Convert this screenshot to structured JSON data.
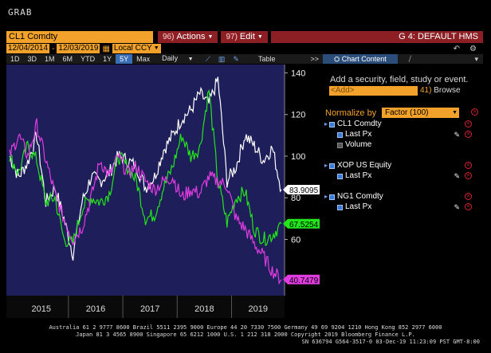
{
  "window": {
    "title": "GRAB"
  },
  "toolbar": {
    "ticker": "CL1 Comdty",
    "actions_num": "96)",
    "actions_label": "Actions",
    "edit_num": "97)",
    "edit_label": "Edit",
    "chart_title": "G 4: DEFAULT HMS"
  },
  "datebar": {
    "start_date": "12/04/2014",
    "end_date": "12/03/2019",
    "currency": "Local CCY"
  },
  "rangebar": {
    "items": [
      "1D",
      "3D",
      "1M",
      "6M",
      "YTD",
      "1Y",
      "5Y",
      "Max"
    ],
    "selected": "5Y",
    "frequency": "Daily",
    "table_label": "Table"
  },
  "sidetabs": {
    "chart_content": "Chart Content",
    "expand_glyph": ">>"
  },
  "panel": {
    "add_prompt": "Add a security, field, study or event.",
    "add_placeholder": "<Add>",
    "browse_num": "41)",
    "browse_label": "Browse",
    "normalize_label": "Normalize by",
    "normalize_value": "Factor (100)",
    "securities": [
      {
        "name": "CL1 Comdty",
        "fields": [
          {
            "label": "Last Px",
            "checked": true
          },
          {
            "label": "Volume",
            "checked": false
          }
        ]
      },
      {
        "name": "XOP US Equity",
        "fields": [
          {
            "label": "Last Px",
            "checked": true
          }
        ]
      },
      {
        "name": "NG1 Comdty",
        "fields": [
          {
            "label": "Last Px",
            "checked": true
          }
        ]
      }
    ]
  },
  "colors": {
    "accent": "#f2a22a",
    "menu_bg": "#8b1f24",
    "plot_bg": "#1e1e5a",
    "cl1": "#ffffff",
    "xop": "#22e51a",
    "ng1": "#e03ce0"
  },
  "chart_data": {
    "type": "line",
    "x": [
      "2014-12",
      "2015-02",
      "2015-04",
      "2015-06",
      "2015-08",
      "2015-10",
      "2015-12",
      "2016-02",
      "2016-04",
      "2016-06",
      "2016-08",
      "2016-10",
      "2016-12",
      "2017-02",
      "2017-04",
      "2017-06",
      "2017-08",
      "2017-10",
      "2017-12",
      "2018-02",
      "2018-04",
      "2018-06",
      "2018-08",
      "2018-10",
      "2018-12",
      "2019-02",
      "2019-04",
      "2019-06",
      "2019-08",
      "2019-10",
      "2019-12"
    ],
    "series": [
      {
        "name": "CL1 Comdty",
        "color": "#ffffff",
        "values": [
          100,
          90,
          97,
          110,
          78,
          85,
          70,
          53,
          78,
          90,
          88,
          92,
          100,
          98,
          95,
          85,
          90,
          103,
          110,
          118,
          122,
          130,
          125,
          137,
          88,
          95,
          110,
          105,
          98,
          104,
          83.9095
        ]
      },
      {
        "name": "XOP US Equity",
        "color": "#22e51a",
        "values": [
          100,
          92,
          105,
          98,
          78,
          80,
          60,
          58,
          75,
          80,
          78,
          82,
          100,
          95,
          88,
          70,
          72,
          85,
          95,
          110,
          100,
          104,
          132,
          88,
          68,
          80,
          83,
          65,
          60,
          62,
          67.5254
        ]
      },
      {
        "name": "NG1 Comdty",
        "color": "#e03ce0",
        "values": [
          100,
          110,
          100,
          115,
          98,
          82,
          70,
          60,
          66,
          80,
          98,
          90,
          100,
          92,
          95,
          88,
          84,
          88,
          90,
          80,
          84,
          82,
          90,
          88,
          86,
          70,
          65,
          58,
          52,
          45,
          40.7479
        ]
      }
    ],
    "last_values": [
      "83.9095",
      "67.5254",
      "40.7479"
    ],
    "xlabel": "",
    "ylabel": "",
    "x_ticks": [
      "2015",
      "2016",
      "2017",
      "2018",
      "2019"
    ],
    "y_ticks": [
      40,
      60,
      80,
      100,
      120,
      140
    ],
    "ylim": [
      33,
      144
    ],
    "grid": false,
    "legend": "right panel"
  },
  "footer": {
    "line1": "Australia 61 2 9777 8600 Brazil 5511 2395 9000 Europe 44 20 7330 7500 Germany 49 69 9204 1210 Hong Kong 852 2977 6000",
    "line2": "Japan 81 3 4565 8900       Singapore 65 6212 1000       U.S. 1 212 318 2000       Copyright 2019 Bloomberg Finance L.P.",
    "line3": "SN 636794 G564-3517-0 03-Dec-19 11:23:09 PST  GMT-8:00"
  }
}
